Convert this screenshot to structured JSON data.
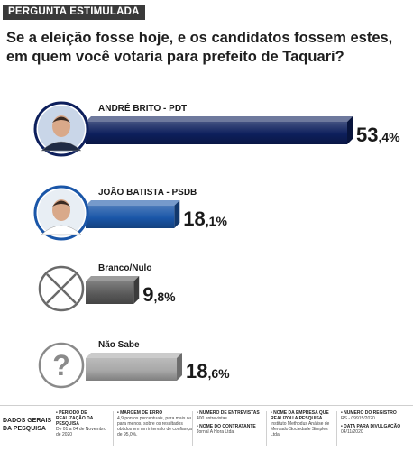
{
  "header": {
    "tag": "PERGUNTA ESTIMULADA",
    "question_line1": "Se a eleição fosse hoje, e os candidatos fossem estes,",
    "question_line2": "em quem você votaria para prefeito de Taquari?"
  },
  "chart_data": {
    "type": "bar",
    "orientation": "horizontal",
    "categories": [
      "ANDRÉ BRITO - PDT",
      "JOÃO BATISTA - PSDB",
      "Branco/Nulo",
      "Não Sabe"
    ],
    "values": [
      53.4,
      18.1,
      9.8,
      18.6
    ],
    "value_labels": [
      {
        "int": "53",
        "dec": ",4%"
      },
      {
        "int": "18",
        "dec": ",1%"
      },
      {
        "int": "9",
        "dec": ",8%"
      },
      {
        "int": "18",
        "dec": ",6%"
      }
    ],
    "colors": [
      "#0d1f5c",
      "#1a56a8",
      "#5a5a5a",
      "#a8a8a8"
    ],
    "icons": [
      "candidate-photo",
      "candidate-photo",
      "x-circle-icon",
      "question-circle-icon"
    ]
  },
  "footer": {
    "title": "DADOS GERAIS DA PESQUISA",
    "cols": [
      [
        {
          "h": "• PERÍODO DE REALIZAÇÃO DA PESQUISA",
          "v": "De 01 a 04 de Novembro de 2020"
        }
      ],
      [
        {
          "h": "• MARGEM DE ERRO",
          "v": "4,9 pontos percentuais, para mais ou para menos, sobre os resultados obtidos em um intervalo de confiança de 95,0%."
        }
      ],
      [
        {
          "h": "• NÚMERO DE ENTREVISTAS",
          "v": "400 entrevistas"
        },
        {
          "h": "• NOME DO CONTRATANTE",
          "v": "Jornal A Hora Ltda."
        }
      ],
      [
        {
          "h": "• NOME DA EMPRESA QUE REALIZOU A PESQUISA",
          "v": "Instituto Methodus Análise de Mercado Sociedade Simples Ltda."
        }
      ],
      [
        {
          "h": "• NÚMERO DO REGISTRO",
          "v": "RS - 09915/2020"
        },
        {
          "h": "• DATA PARA DIVULGAÇÃO",
          "v": "04/11/2020"
        }
      ]
    ]
  }
}
